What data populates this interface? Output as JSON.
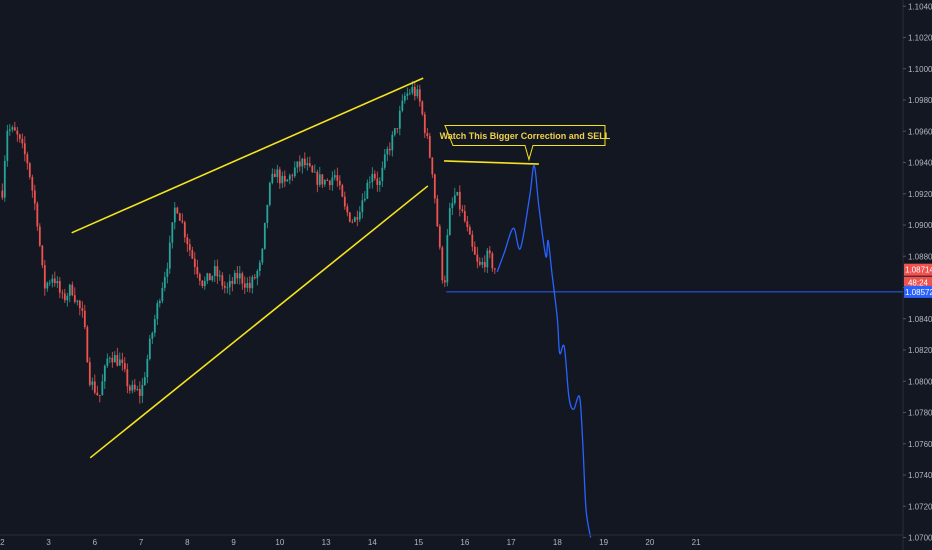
{
  "chart_data": {
    "type": "candlestick",
    "title": "",
    "xlabel": "",
    "ylabel": "",
    "ylim": [
      1.0692,
      1.1044
    ],
    "xlim": [
      1.95,
      22.1
    ],
    "grid": false,
    "colors": {
      "background": "#131722",
      "up": "#26a69a",
      "down": "#ef5350",
      "trendline": "#f5e41c",
      "projection": "#2962ff",
      "support": "#2962ff",
      "text": "#b2b5be"
    },
    "y_ticks": [
      "1.10400",
      "1.10200",
      "1.10000",
      "1.09800",
      "1.09600",
      "1.09400",
      "1.09200",
      "1.09000",
      "1.08800",
      "1.08600",
      "1.08400",
      "1.08200",
      "1.08000",
      "1.07800",
      "1.07600",
      "1.07400",
      "1.07200",
      "1.07000"
    ],
    "x_ticks": [
      {
        "label": "2",
        "x": 2
      },
      {
        "label": "3",
        "x": 3
      },
      {
        "label": "6",
        "x": 4
      },
      {
        "label": "7",
        "x": 5
      },
      {
        "label": "8",
        "x": 6
      },
      {
        "label": "9",
        "x": 7
      },
      {
        "label": "10",
        "x": 8
      },
      {
        "label": "13",
        "x": 9
      },
      {
        "label": "14",
        "x": 10
      },
      {
        "label": "15",
        "x": 11
      },
      {
        "label": "16",
        "x": 12
      },
      {
        "label": "17",
        "x": 13
      },
      {
        "label": "18",
        "x": 14
      },
      {
        "label": "19",
        "x": 15
      },
      {
        "label": "20",
        "x": 16
      },
      {
        "label": "21",
        "x": 17
      }
    ],
    "price_path": [
      [
        2.0,
        1.0922
      ],
      [
        2.1,
        1.0962
      ],
      [
        2.3,
        1.0958
      ],
      [
        2.55,
        1.094
      ],
      [
        2.75,
        1.0905
      ],
      [
        2.9,
        1.086
      ],
      [
        3.1,
        1.0868
      ],
      [
        3.3,
        1.0852
      ],
      [
        3.5,
        1.086
      ],
      [
        3.75,
        1.084
      ],
      [
        3.9,
        1.08
      ],
      [
        4.1,
        1.079
      ],
      [
        4.3,
        1.0818
      ],
      [
        4.55,
        1.0812
      ],
      [
        4.75,
        1.0795
      ],
      [
        5.0,
        1.0792
      ],
      [
        5.2,
        1.0825
      ],
      [
        5.4,
        1.0855
      ],
      [
        5.6,
        1.088
      ],
      [
        5.75,
        1.0915
      ],
      [
        5.9,
        1.09
      ],
      [
        6.1,
        1.088
      ],
      [
        6.35,
        1.0862
      ],
      [
        6.6,
        1.087
      ],
      [
        6.85,
        1.0858
      ],
      [
        7.1,
        1.0868
      ],
      [
        7.35,
        1.086
      ],
      [
        7.6,
        1.0875
      ],
      [
        7.75,
        1.092
      ],
      [
        7.9,
        1.0935
      ],
      [
        8.1,
        1.0925
      ],
      [
        8.3,
        1.0935
      ],
      [
        8.5,
        1.094
      ],
      [
        8.75,
        1.093
      ],
      [
        9.0,
        1.0928
      ],
      [
        9.2,
        1.0932
      ],
      [
        9.4,
        1.091
      ],
      [
        9.6,
        1.0902
      ],
      [
        9.8,
        1.0918
      ],
      [
        10.0,
        1.0935
      ],
      [
        10.15,
        1.0925
      ],
      [
        10.3,
        1.0945
      ],
      [
        10.5,
        1.096
      ],
      [
        10.7,
        1.0982
      ],
      [
        10.85,
        1.0987
      ],
      [
        11.0,
        1.0982
      ],
      [
        11.15,
        1.096
      ],
      [
        11.3,
        1.0935
      ],
      [
        11.45,
        1.0885
      ],
      [
        11.55,
        1.0858
      ],
      [
        11.65,
        1.0905
      ],
      [
        11.8,
        1.092
      ],
      [
        12.0,
        1.0902
      ],
      [
        12.15,
        1.0885
      ],
      [
        12.3,
        1.0872
      ],
      [
        12.5,
        1.088
      ],
      [
        12.65,
        1.0872
      ]
    ],
    "projection": [
      [
        12.7,
        1.087
      ],
      [
        12.85,
        1.0882
      ],
      [
        13.05,
        1.0898
      ],
      [
        13.2,
        1.0885
      ],
      [
        13.4,
        1.0918
      ],
      [
        13.5,
        1.0938
      ],
      [
        13.6,
        1.0912
      ],
      [
        13.75,
        1.088
      ],
      [
        13.8,
        1.089
      ],
      [
        13.88,
        1.087
      ],
      [
        14.0,
        1.084
      ],
      [
        14.05,
        1.0818
      ],
      [
        14.15,
        1.0822
      ],
      [
        14.25,
        1.079
      ],
      [
        14.35,
        1.0782
      ],
      [
        14.48,
        1.079
      ],
      [
        14.55,
        1.076
      ],
      [
        14.62,
        1.0718
      ],
      [
        14.72,
        1.07
      ]
    ],
    "trendlines": [
      {
        "from": [
          3.5,
          1.0895
        ],
        "to": [
          11.1,
          1.0994
        ]
      },
      {
        "from": [
          3.9,
          1.0751
        ],
        "to": [
          11.2,
          1.0925
        ]
      },
      {
        "from": [
          11.55,
          1.0941
        ],
        "to": [
          13.6,
          1.0939
        ]
      }
    ],
    "support_level": {
      "value": 1.08572,
      "from_x": 11.6
    },
    "price_badges": [
      "1.08714",
      "48:24",
      "1.08572"
    ],
    "annotation": {
      "text": "Watch This Bigger Correction and SELL",
      "anchor": [
        13.3,
        1.0956
      ]
    }
  }
}
